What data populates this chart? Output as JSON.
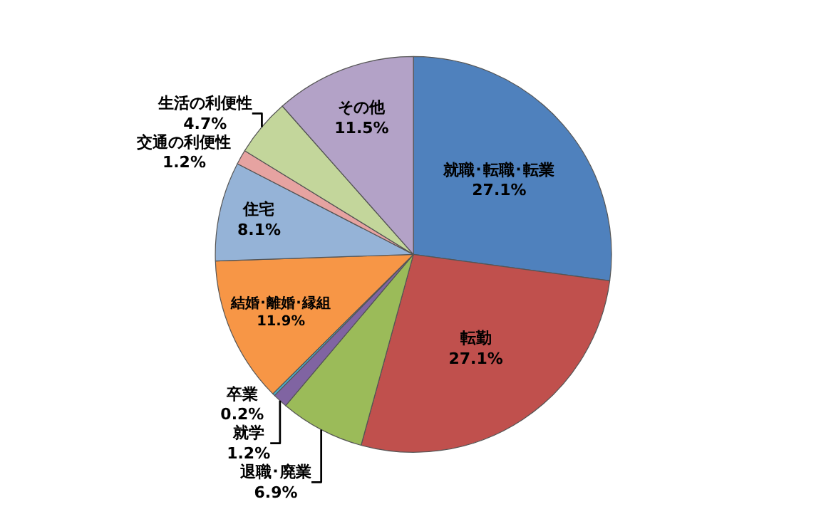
{
  "chart_data": {
    "type": "pie",
    "categories": [
      "就職･転職･転業",
      "転勤",
      "退職･廃業",
      "就学",
      "卒業",
      "結婚･離婚･縁組",
      "住宅",
      "交通の利便性",
      "生活の利便性",
      "その他"
    ],
    "values": [
      27.1,
      27.1,
      6.9,
      1.2,
      0.2,
      11.9,
      8.1,
      1.2,
      4.7,
      11.5
    ],
    "colors": [
      "#4f81bd",
      "#c0504d",
      "#9bbb59",
      "#8064a2",
      "#4bacc6",
      "#f79646",
      "#95b3d7",
      "#e6a3a1",
      "#c3d69b",
      "#b3a2c7"
    ],
    "value_labels": [
      "27.1%",
      "27.1%",
      "6.9%",
      "1.2%",
      "0.2%",
      "11.9%",
      "8.1%",
      "1.2%",
      "4.7%",
      "11.5%"
    ],
    "legend": false
  }
}
